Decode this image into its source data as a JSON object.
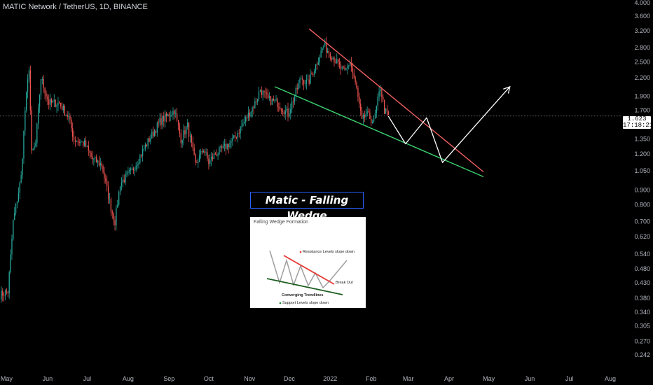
{
  "symbol_title": "MATIC Network / TetherUS, 1D, BINANCE",
  "last_price": {
    "value": "1.623",
    "countdown": "17:18:21"
  },
  "wedge_label": "Matic - Falling Wedge",
  "inset": {
    "title": "Falling Wedge Formation",
    "resistance": "Resistance Levels slope down",
    "breakout": "Break Out",
    "converging": "Converging Trendlines",
    "support": "Support Levels slope down"
  },
  "colors": {
    "background": "#000000",
    "up_candle": "#26a69a",
    "down_candle": "#ef5350",
    "resistance_line": "#f06060",
    "support_line": "#3bd16f",
    "projection": "#ffffff",
    "axis_text": "#b2b5be"
  },
  "chart_data": {
    "type": "candlestick",
    "y_scale": "log",
    "ylim": [
      0.23,
      4.0
    ],
    "xlim": [
      "2021-04-26",
      "2022-08-10"
    ],
    "x_ticks": [
      {
        "date": "2021-05-01",
        "label": "May"
      },
      {
        "date": "2021-06-01",
        "label": "Jun"
      },
      {
        "date": "2021-07-01",
        "label": "Jul"
      },
      {
        "date": "2021-08-01",
        "label": "Aug"
      },
      {
        "date": "2021-09-01",
        "label": "Sep"
      },
      {
        "date": "2021-10-01",
        "label": "Oct"
      },
      {
        "date": "2021-11-01",
        "label": "Nov"
      },
      {
        "date": "2021-12-01",
        "label": "Dec"
      },
      {
        "date": "2022-01-01",
        "label": "2022"
      },
      {
        "date": "2022-02-01",
        "label": "Feb"
      },
      {
        "date": "2022-03-01",
        "label": "Mar"
      },
      {
        "date": "2022-04-01",
        "label": "Apr"
      },
      {
        "date": "2022-05-01",
        "label": "May"
      },
      {
        "date": "2022-06-01",
        "label": "Jun"
      },
      {
        "date": "2022-07-01",
        "label": "Jul"
      },
      {
        "date": "2022-08-01",
        "label": "Aug"
      }
    ],
    "y_ticks": [
      "4.000",
      "3.600",
      "3.200",
      "2.800",
      "2.500",
      "2.200",
      "1.900",
      "1.700",
      "1.500",
      "1.350",
      "1.200",
      "1.050",
      "0.900",
      "0.800",
      "0.700",
      "0.620",
      "0.540",
      "0.480",
      "0.430",
      "0.380",
      "0.340",
      "0.305",
      "0.270",
      "0.242"
    ],
    "price_path": [
      [
        "2021-04-26",
        0.39
      ],
      [
        "2021-05-02",
        0.4
      ],
      [
        "2021-05-06",
        0.7
      ],
      [
        "2021-05-12",
        1.0
      ],
      [
        "2021-05-15",
        1.7
      ],
      [
        "2021-05-18",
        2.4
      ],
      [
        "2021-05-20",
        1.2
      ],
      [
        "2021-05-23",
        1.3
      ],
      [
        "2021-05-27",
        2.2
      ],
      [
        "2021-06-02",
        1.8
      ],
      [
        "2021-06-10",
        1.8
      ],
      [
        "2021-06-17",
        1.6
      ],
      [
        "2021-06-21",
        1.35
      ],
      [
        "2021-06-29",
        1.3
      ],
      [
        "2021-07-05",
        1.15
      ],
      [
        "2021-07-12",
        1.1
      ],
      [
        "2021-07-19",
        0.78
      ],
      [
        "2021-07-22",
        0.7
      ],
      [
        "2021-07-26",
        0.95
      ],
      [
        "2021-08-04",
        1.05
      ],
      [
        "2021-08-15",
        1.3
      ],
      [
        "2021-08-25",
        1.55
      ],
      [
        "2021-09-05",
        1.7
      ],
      [
        "2021-09-10",
        1.35
      ],
      [
        "2021-09-15",
        1.5
      ],
      [
        "2021-09-21",
        1.1
      ],
      [
        "2021-09-27",
        1.25
      ],
      [
        "2021-10-01",
        1.12
      ],
      [
        "2021-10-06",
        1.2
      ],
      [
        "2021-10-12",
        1.25
      ],
      [
        "2021-10-20",
        1.35
      ],
      [
        "2021-10-28",
        1.55
      ],
      [
        "2021-11-05",
        1.8
      ],
      [
        "2021-11-09",
        2.0
      ],
      [
        "2021-11-15",
        1.85
      ],
      [
        "2021-11-22",
        1.8
      ],
      [
        "2021-11-30",
        1.65
      ],
      [
        "2021-12-04",
        1.85
      ],
      [
        "2021-12-10",
        2.2
      ],
      [
        "2021-12-15",
        2.1
      ],
      [
        "2021-12-22",
        2.5
      ],
      [
        "2021-12-27",
        2.85
      ],
      [
        "2022-01-03",
        2.6
      ],
      [
        "2022-01-08",
        2.4
      ],
      [
        "2022-01-12",
        2.3
      ],
      [
        "2022-01-16",
        2.5
      ],
      [
        "2022-01-21",
        2.0
      ],
      [
        "2022-01-25",
        1.55
      ],
      [
        "2022-01-28",
        1.65
      ],
      [
        "2022-02-03",
        1.55
      ],
      [
        "2022-02-08",
        2.05
      ],
      [
        "2022-02-11",
        1.7
      ],
      [
        "2022-02-14",
        1.62
      ]
    ],
    "annotations": {
      "resistance_line": [
        [
          "2021-12-16",
          3.25
        ],
        [
          "2022-04-27",
          1.04
        ]
      ],
      "support_line": [
        [
          "2021-11-20",
          2.05
        ],
        [
          "2022-04-27",
          1.0
        ]
      ],
      "projection_path": [
        [
          "2022-02-14",
          1.62
        ],
        [
          "2022-02-27",
          1.3
        ],
        [
          "2022-03-15",
          1.6
        ],
        [
          "2022-03-27",
          1.12
        ],
        [
          "2022-05-17",
          2.05
        ]
      ]
    }
  }
}
